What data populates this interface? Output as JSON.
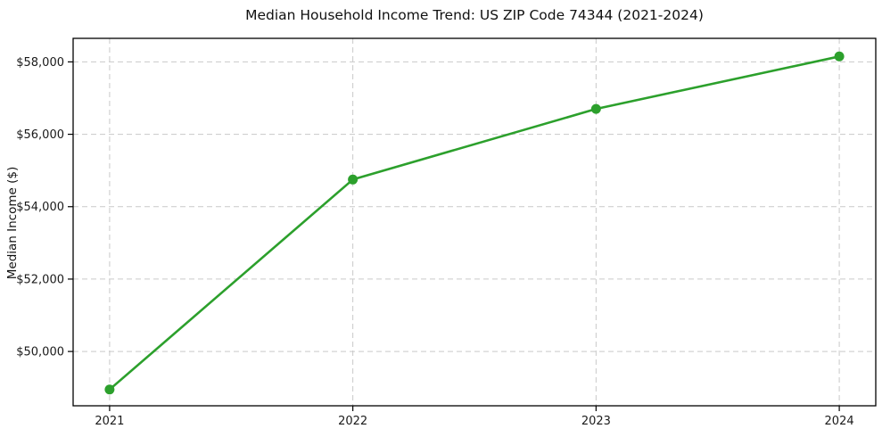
{
  "chart_data": {
    "type": "line",
    "title": "Median Household Income Trend: US ZIP Code 74344 (2021-2024)",
    "xlabel": "",
    "ylabel": "Median Income ($)",
    "x": [
      2021,
      2022,
      2023,
      2024
    ],
    "x_tick_labels": [
      "2021",
      "2022",
      "2023",
      "2024"
    ],
    "series": [
      {
        "name": "Median Household Income",
        "values": [
          48950,
          54750,
          56700,
          58150
        ]
      }
    ],
    "y_ticks": [
      50000,
      52000,
      54000,
      56000,
      58000
    ],
    "y_tick_labels": [
      "$50,000",
      "$52,000",
      "$54,000",
      "$56,000",
      "$58,000"
    ],
    "ylim": [
      48500,
      58650
    ],
    "xlim": [
      2020.85,
      2024.15
    ],
    "grid": true,
    "grid_style": "dashed",
    "legend_position": "none",
    "colors": {
      "line": "#2ca02c",
      "marker": "#2ca02c",
      "grid": "#c9c9c9",
      "spine": "#000000",
      "background": "#ffffff",
      "text": "#1a1a1a"
    }
  }
}
